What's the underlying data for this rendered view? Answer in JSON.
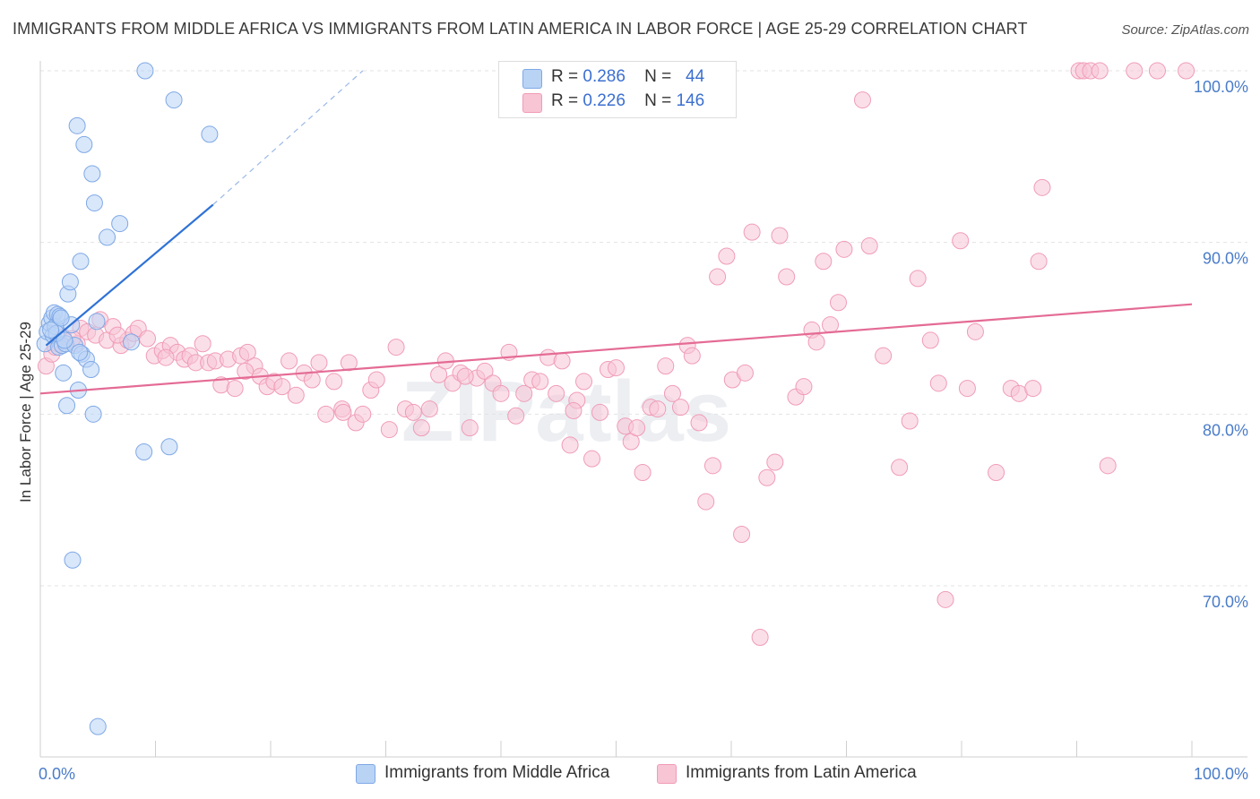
{
  "header": {
    "title": "IMMIGRANTS FROM MIDDLE AFRICA VS IMMIGRANTS FROM LATIN AMERICA IN LABOR FORCE | AGE 25-29 CORRELATION CHART",
    "source": "Source: ZipAtlas.com"
  },
  "watermark": "ZIPatlas",
  "legend": {
    "r_label": "R =",
    "n_label": "N =",
    "rows": [
      {
        "r": "0.286",
        "n": "44"
      },
      {
        "r": "0.226",
        "n": "146"
      }
    ]
  },
  "bottom_legend": [
    "Immigrants from Middle Africa",
    "Immigrants from Latin America"
  ],
  "colors": {
    "blue_fill": "#b9d3f5",
    "blue_stroke": "#7ea8e6",
    "blue_line": "#2f72d6",
    "pink_fill": "#f8c5d5",
    "pink_stroke": "#f09cb7",
    "pink_line": "#e46b95",
    "tick_text": "#4a7cc9"
  },
  "chart_data": {
    "type": "scatter",
    "title": "IMMIGRANTS FROM MIDDLE AFRICA VS IMMIGRANTS FROM LATIN AMERICA IN LABOR FORCE | AGE 25-29 CORRELATION CHART",
    "xlabel": "",
    "ylabel": "In Labor Force | Age 25-29",
    "xlim": [
      0,
      100
    ],
    "ylim": [
      60,
      101
    ],
    "x_tick_labels": [
      {
        "value": 0,
        "label": "0.0%"
      },
      {
        "value": 100,
        "label": "100.0%"
      }
    ],
    "y_tick_labels": [
      {
        "value": 70,
        "label": "70.0%"
      },
      {
        "value": 80,
        "label": "80.0%"
      },
      {
        "value": 90,
        "label": "90.0%"
      },
      {
        "value": 100,
        "label": "100.0%"
      }
    ],
    "grid": true,
    "series": [
      {
        "name": "Immigrants from Middle Africa",
        "color": "#7ea8e6",
        "trend": {
          "x1": 0.5,
          "y1": 84.0,
          "x2": 15,
          "y2": 92.2,
          "dash_to_x": 28,
          "dash_to_y": 100.0
        },
        "points": [
          [
            0.4,
            84.1
          ],
          [
            0.6,
            84.8
          ],
          [
            0.8,
            85.3
          ],
          [
            1.0,
            85.6
          ],
          [
            1.1,
            84.6
          ],
          [
            1.2,
            85.9
          ],
          [
            1.3,
            85.1
          ],
          [
            1.5,
            85.8
          ],
          [
            1.6,
            83.9
          ],
          [
            1.7,
            85.7
          ],
          [
            1.9,
            84.0
          ],
          [
            2.0,
            82.4
          ],
          [
            2.2,
            84.1
          ],
          [
            2.3,
            80.5
          ],
          [
            2.4,
            87.0
          ],
          [
            2.6,
            87.7
          ],
          [
            2.7,
            85.2
          ],
          [
            2.8,
            71.5
          ],
          [
            3.0,
            84.0
          ],
          [
            3.2,
            96.8
          ],
          [
            3.3,
            81.4
          ],
          [
            3.5,
            88.9
          ],
          [
            3.6,
            83.5
          ],
          [
            3.8,
            95.7
          ],
          [
            4.0,
            83.2
          ],
          [
            4.4,
            82.6
          ],
          [
            4.5,
            94.0
          ],
          [
            4.6,
            80.0
          ],
          [
            4.7,
            92.3
          ],
          [
            4.9,
            85.4
          ],
          [
            5.0,
            61.8
          ],
          [
            5.8,
            90.3
          ],
          [
            6.9,
            91.1
          ],
          [
            7.9,
            84.2
          ],
          [
            9.1,
            100.0
          ],
          [
            9.0,
            77.8
          ],
          [
            11.2,
            78.1
          ],
          [
            11.6,
            98.3
          ],
          [
            14.7,
            96.3
          ],
          [
            1.4,
            84.7
          ],
          [
            2.1,
            84.3
          ],
          [
            0.9,
            84.9
          ],
          [
            1.8,
            85.6
          ],
          [
            3.4,
            83.6
          ]
        ]
      },
      {
        "name": "Immigrants from Latin America",
        "color": "#f09cb7",
        "trend": {
          "x1": 0,
          "y1": 81.2,
          "x2": 100,
          "y2": 86.4
        },
        "points": [
          [
            0.5,
            82.8
          ],
          [
            1.0,
            83.5
          ],
          [
            1.5,
            84.1
          ],
          [
            2.0,
            84.5
          ],
          [
            3.2,
            84.1
          ],
          [
            3.5,
            85.0
          ],
          [
            4.1,
            84.8
          ],
          [
            4.8,
            84.6
          ],
          [
            5.2,
            85.5
          ],
          [
            5.8,
            84.3
          ],
          [
            6.3,
            85.1
          ],
          [
            7.0,
            84.0
          ],
          [
            7.6,
            84.3
          ],
          [
            8.1,
            84.7
          ],
          [
            8.5,
            85.0
          ],
          [
            9.3,
            84.4
          ],
          [
            9.9,
            83.4
          ],
          [
            10.6,
            83.7
          ],
          [
            11.3,
            84.0
          ],
          [
            11.9,
            83.6
          ],
          [
            12.5,
            83.2
          ],
          [
            13.0,
            83.4
          ],
          [
            13.5,
            83.0
          ],
          [
            14.1,
            84.1
          ],
          [
            14.6,
            83.0
          ],
          [
            15.2,
            83.1
          ],
          [
            15.7,
            81.7
          ],
          [
            16.3,
            83.2
          ],
          [
            16.9,
            81.5
          ],
          [
            17.4,
            83.4
          ],
          [
            18.0,
            83.6
          ],
          [
            18.6,
            82.8
          ],
          [
            19.1,
            82.2
          ],
          [
            19.7,
            81.6
          ],
          [
            20.3,
            81.9
          ],
          [
            21.0,
            81.6
          ],
          [
            21.6,
            83.1
          ],
          [
            22.2,
            81.1
          ],
          [
            22.9,
            82.4
          ],
          [
            23.6,
            82.0
          ],
          [
            24.2,
            83.0
          ],
          [
            24.8,
            80.0
          ],
          [
            25.5,
            81.9
          ],
          [
            26.2,
            80.3
          ],
          [
            26.8,
            83.0
          ],
          [
            27.4,
            79.5
          ],
          [
            28.0,
            80.0
          ],
          [
            28.7,
            81.4
          ],
          [
            29.2,
            82.0
          ],
          [
            30.3,
            79.1
          ],
          [
            30.9,
            83.9
          ],
          [
            31.7,
            80.3
          ],
          [
            32.4,
            80.1
          ],
          [
            33.1,
            79.2
          ],
          [
            33.8,
            80.3
          ],
          [
            34.6,
            82.3
          ],
          [
            35.2,
            83.1
          ],
          [
            35.8,
            81.8
          ],
          [
            36.5,
            82.4
          ],
          [
            37.3,
            79.2
          ],
          [
            37.9,
            82.1
          ],
          [
            38.6,
            82.5
          ],
          [
            39.3,
            81.8
          ],
          [
            40.0,
            81.2
          ],
          [
            40.7,
            83.6
          ],
          [
            41.3,
            79.9
          ],
          [
            42.0,
            81.2
          ],
          [
            42.7,
            82.0
          ],
          [
            43.4,
            81.9
          ],
          [
            44.1,
            83.3
          ],
          [
            44.8,
            81.2
          ],
          [
            45.3,
            83.1
          ],
          [
            46.0,
            78.2
          ],
          [
            46.6,
            80.8
          ],
          [
            47.2,
            81.9
          ],
          [
            47.9,
            77.4
          ],
          [
            48.6,
            80.1
          ],
          [
            49.3,
            82.6
          ],
          [
            50.0,
            82.7
          ],
          [
            50.8,
            79.3
          ],
          [
            51.3,
            78.4
          ],
          [
            51.8,
            79.2
          ],
          [
            52.3,
            76.6
          ],
          [
            53.0,
            80.4
          ],
          [
            53.6,
            80.3
          ],
          [
            54.3,
            82.8
          ],
          [
            54.9,
            81.2
          ],
          [
            55.6,
            80.4
          ],
          [
            56.2,
            84.0
          ],
          [
            56.6,
            83.4
          ],
          [
            57.2,
            79.5
          ],
          [
            57.8,
            74.9
          ],
          [
            58.4,
            77.0
          ],
          [
            58.8,
            88.0
          ],
          [
            59.6,
            89.2
          ],
          [
            60.1,
            82.0
          ],
          [
            60.9,
            73.0
          ],
          [
            61.2,
            82.4
          ],
          [
            61.8,
            90.6
          ],
          [
            62.5,
            67.0
          ],
          [
            63.1,
            76.3
          ],
          [
            63.8,
            77.2
          ],
          [
            64.2,
            90.4
          ],
          [
            64.8,
            88.0
          ],
          [
            65.6,
            81.0
          ],
          [
            66.3,
            81.6
          ],
          [
            67.0,
            84.9
          ],
          [
            67.4,
            84.2
          ],
          [
            68.0,
            88.9
          ],
          [
            68.6,
            85.2
          ],
          [
            69.3,
            86.5
          ],
          [
            69.8,
            89.6
          ],
          [
            71.4,
            98.3
          ],
          [
            72.0,
            89.8
          ],
          [
            73.2,
            83.4
          ],
          [
            74.6,
            76.9
          ],
          [
            75.5,
            79.6
          ],
          [
            76.2,
            87.9
          ],
          [
            77.3,
            84.3
          ],
          [
            78.0,
            81.8
          ],
          [
            78.6,
            69.2
          ],
          [
            80.5,
            81.5
          ],
          [
            79.9,
            90.1
          ],
          [
            81.2,
            84.8
          ],
          [
            83.0,
            76.6
          ],
          [
            84.3,
            81.5
          ],
          [
            85.0,
            81.2
          ],
          [
            86.2,
            81.5
          ],
          [
            86.7,
            88.9
          ],
          [
            87.0,
            93.2
          ],
          [
            90.2,
            100.0
          ],
          [
            90.6,
            100.0
          ],
          [
            91.2,
            100.0
          ],
          [
            92.0,
            100.0
          ],
          [
            95.0,
            100.0
          ],
          [
            97.0,
            100.0
          ],
          [
            99.5,
            100.0
          ],
          [
            92.7,
            77.0
          ],
          [
            1.3,
            83.9
          ],
          [
            2.8,
            84.4
          ],
          [
            6.7,
            84.6
          ],
          [
            10.9,
            83.3
          ],
          [
            17.8,
            82.5
          ],
          [
            26.3,
            80.1
          ],
          [
            36.9,
            82.2
          ],
          [
            46.3,
            80.2
          ]
        ]
      }
    ]
  }
}
